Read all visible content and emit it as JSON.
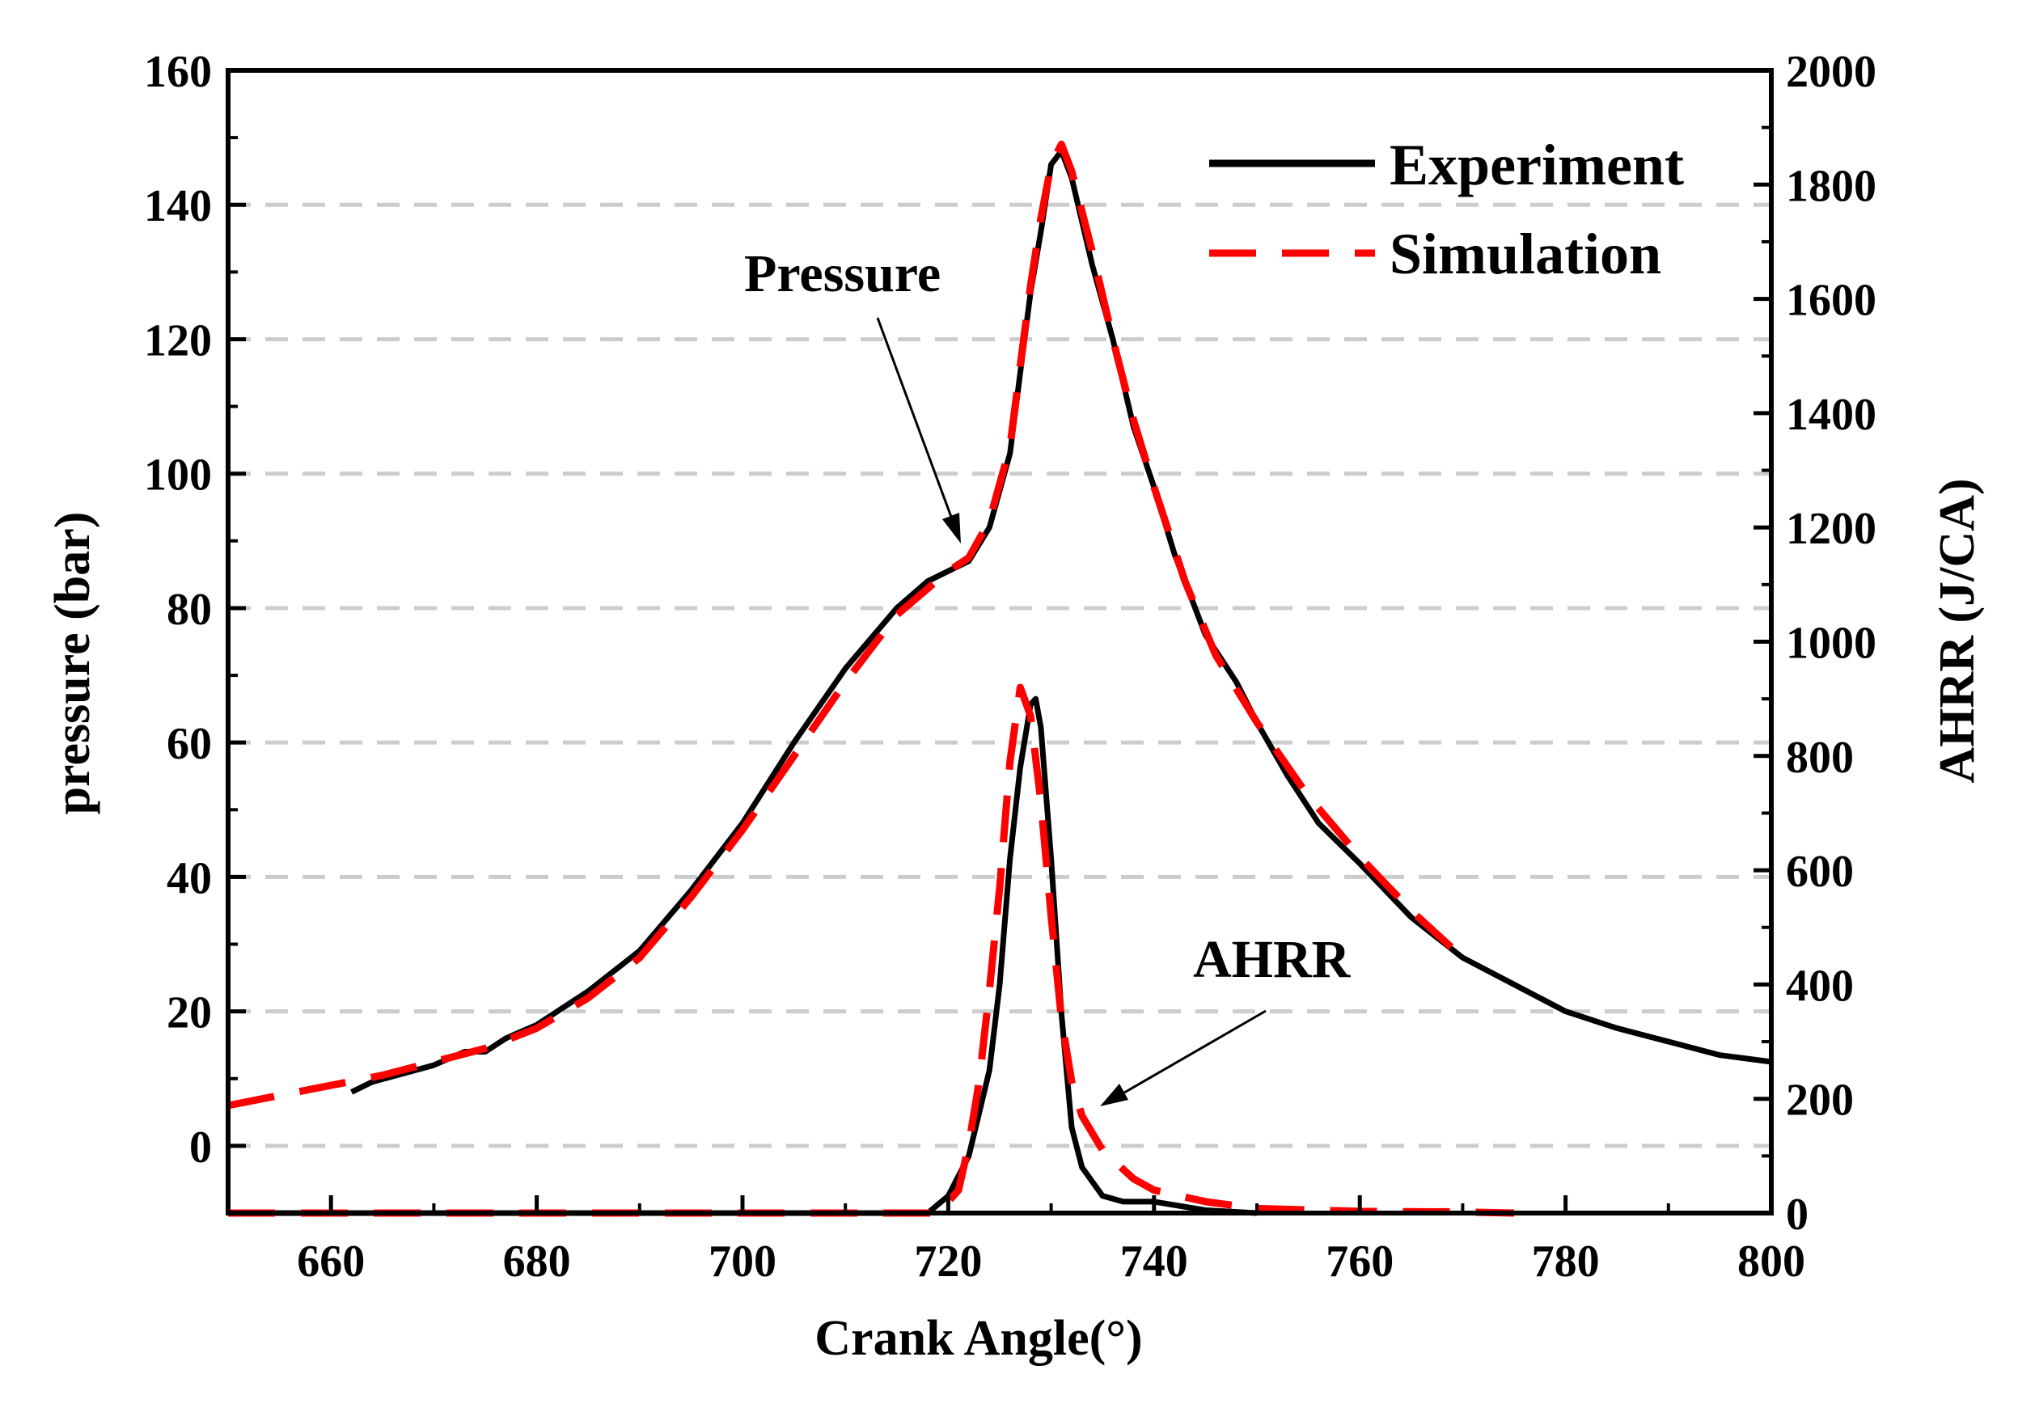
{
  "chart_data": {
    "type": "line",
    "title": "",
    "xlabel": "Crank Angle(°)",
    "ylabel_left": "pressure (bar)",
    "ylabel_right": "AHRR (J/CA)",
    "xlim": [
      650,
      800
    ],
    "ylim_left": [
      -10,
      160
    ],
    "ylim_right": [
      0,
      2000
    ],
    "x_ticks": [
      660,
      680,
      700,
      720,
      740,
      760,
      780,
      800
    ],
    "y_ticks_left": [
      0,
      20,
      40,
      60,
      80,
      100,
      120,
      140,
      160
    ],
    "y_ticks_right": [
      0,
      200,
      400,
      600,
      800,
      1000,
      1200,
      1400,
      1600,
      1800,
      2000
    ],
    "grid": "horizontal dashed at left-axis major ticks",
    "legend": {
      "position": "top-right",
      "entries": [
        "Experiment",
        "Simulation"
      ]
    },
    "annotations": [
      "Pressure",
      "AHRR"
    ],
    "colors": {
      "experiment": "#000000",
      "simulation": "#ff0000",
      "grid": "#cccccc"
    },
    "series": [
      {
        "name": "Experiment",
        "quantity": "pressure",
        "axis": "left",
        "style": "solid",
        "x": [
          662,
          664,
          670,
          673,
          675,
          677,
          680,
          685,
          690,
          695,
          700,
          705,
          710,
          715,
          718,
          720,
          722,
          724,
          726,
          727,
          728,
          729,
          730,
          731,
          732,
          734,
          736,
          738,
          740,
          742,
          745,
          748,
          750,
          753,
          756,
          760,
          765,
          770,
          775,
          780,
          785,
          790,
          795,
          800
        ],
        "y": [
          8,
          9.5,
          12,
          14,
          14,
          16,
          18,
          23,
          29,
          38,
          48,
          60,
          71,
          80,
          84,
          85.5,
          87,
          92,
          103,
          115,
          127,
          136,
          146,
          148,
          144,
          131,
          120,
          107,
          98,
          88,
          76,
          69,
          63,
          55,
          48,
          42,
          34,
          28,
          24,
          20,
          17.5,
          15.5,
          13.5,
          12.5
        ]
      },
      {
        "name": "Simulation",
        "quantity": "pressure",
        "axis": "left",
        "style": "dashed",
        "x": [
          650,
          655,
          660,
          665,
          670,
          675,
          680,
          685,
          690,
          695,
          700,
          705,
          710,
          715,
          720,
          722,
          724,
          726,
          727,
          728,
          729,
          730,
          731,
          732,
          734,
          736,
          738,
          740,
          743,
          746,
          750,
          755,
          760,
          765,
          770
        ],
        "y": [
          6,
          7.5,
          9,
          10.5,
          12.5,
          14.5,
          17.5,
          22,
          28,
          37,
          47,
          58,
          69,
          79,
          85.5,
          87.5,
          93,
          104,
          116,
          128,
          138,
          146,
          149,
          145,
          133,
          120,
          108,
          98,
          84,
          73,
          63,
          52,
          43,
          35,
          28
        ]
      },
      {
        "name": "Experiment",
        "quantity": "AHRR",
        "axis": "right",
        "style": "solid",
        "x": [
          650,
          660,
          680,
          700,
          715,
          718,
          720,
          722,
          724,
          725,
          726,
          727,
          728,
          728.5,
          729,
          730,
          731,
          732,
          733,
          735,
          737,
          740,
          745,
          750
        ],
        "y": [
          0,
          0,
          0,
          0,
          0,
          0,
          30,
          100,
          250,
          400,
          620,
          780,
          890,
          900,
          850,
          620,
          350,
          150,
          80,
          30,
          20,
          20,
          5,
          0
        ]
      },
      {
        "name": "Simulation",
        "quantity": "AHRR",
        "axis": "right",
        "style": "dashed",
        "x": [
          650,
          660,
          680,
          700,
          715,
          719,
          721,
          722,
          723,
          724,
          725,
          726,
          727,
          728,
          729,
          730,
          731,
          732,
          733,
          735,
          738,
          740,
          745,
          750,
          760,
          770,
          775
        ],
        "y": [
          0,
          0,
          0,
          0,
          0,
          0,
          40,
          120,
          230,
          390,
          570,
          790,
          920,
          870,
          720,
          520,
          340,
          230,
          170,
          110,
          60,
          40,
          20,
          8,
          3,
          2,
          0
        ]
      }
    ]
  }
}
